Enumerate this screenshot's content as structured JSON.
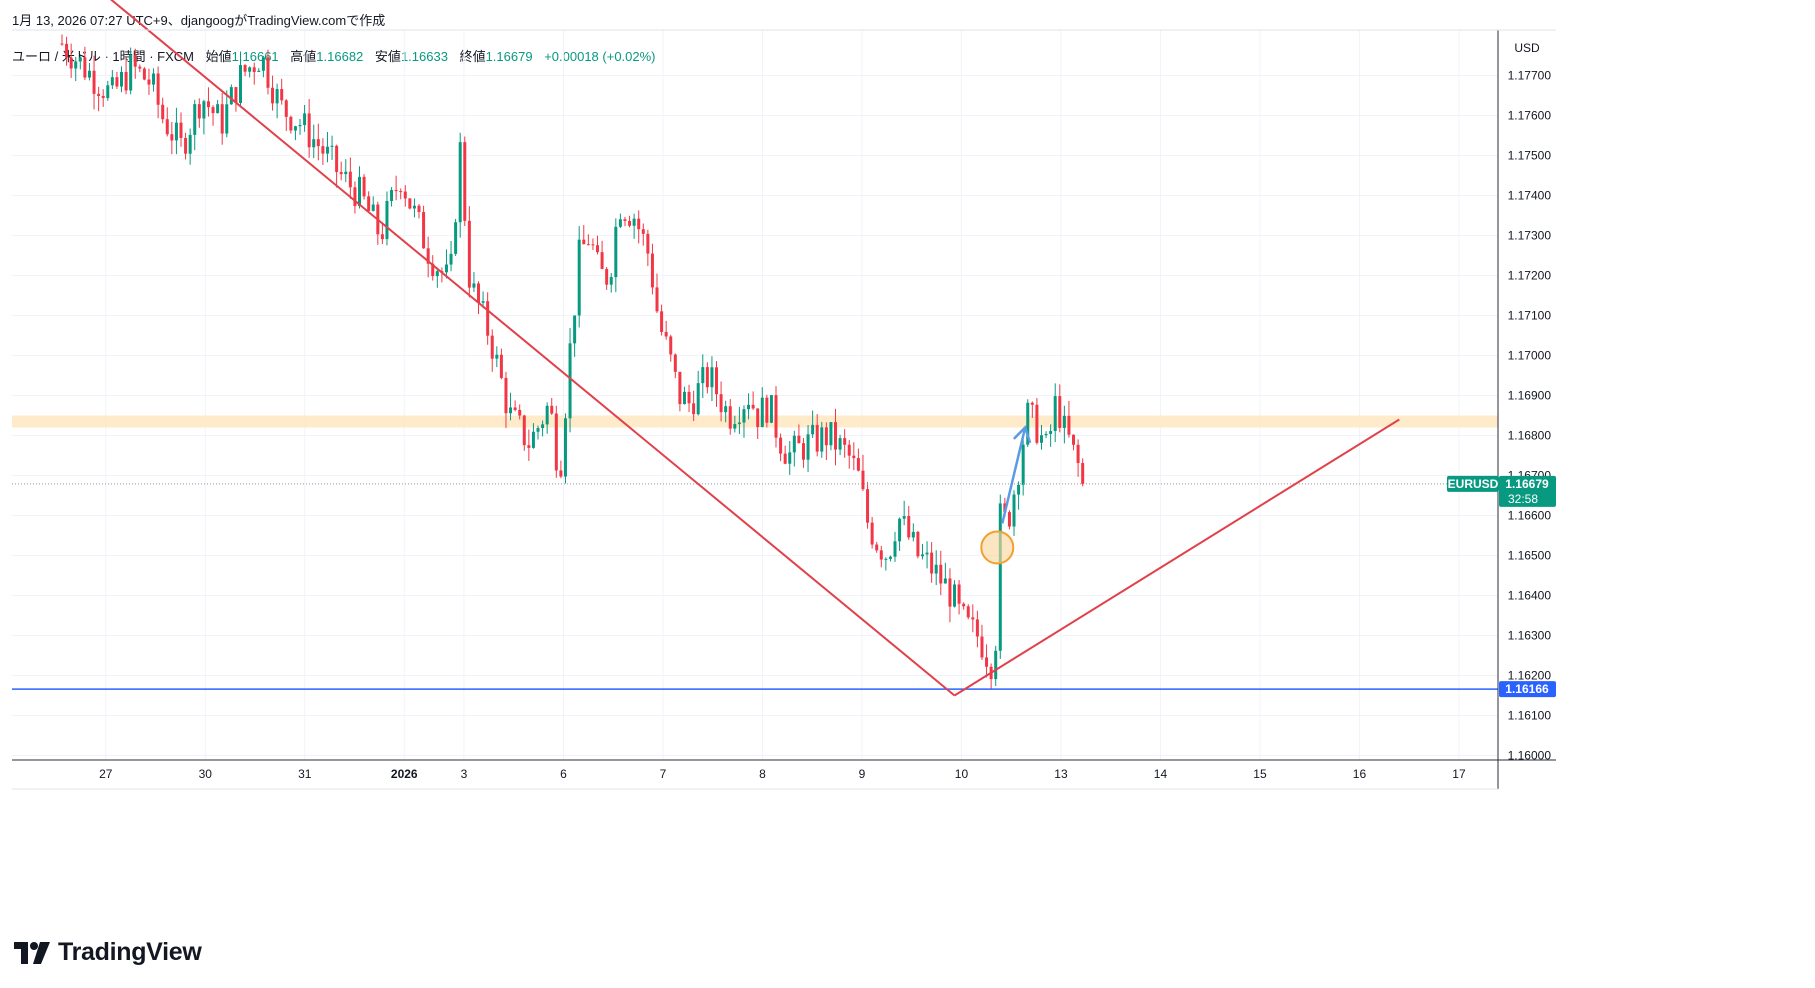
{
  "caption": "1月 13, 2026 07:27 UTC+9、djangoogがTradingView.comで作成",
  "legend": {
    "symbol": "ユーロ / 米ドル · 1時間 · FXCM",
    "open_label": "始値",
    "open": "1.16661",
    "high_label": "高値",
    "high": "1.16682",
    "low_label": "安値",
    "low": "1.16633",
    "close_label": "終値",
    "close": "1.16679",
    "change": "+0.00018 (+0.02%)"
  },
  "brand": "TradingView",
  "price_tag": {
    "symbol": "EURUSD",
    "price": "1.16679",
    "countdown": "32:58"
  },
  "level_tag": "1.16166",
  "colors": {
    "up": "#089981",
    "down": "#f23645",
    "level_line": "#2962ff",
    "trend_line": "#e0414a",
    "zone": "#ffe8bf",
    "arrow": "#5b9be3",
    "circle": "#f0a030"
  },
  "chart_data": {
    "type": "candlestick",
    "currency": "USD",
    "ylim": [
      1.16,
      1.178
    ],
    "yticks": [
      "1.16000",
      "1.16100",
      "1.16200",
      "1.16300",
      "1.16400",
      "1.16500",
      "1.16600",
      "1.16700",
      "1.16800",
      "1.16900",
      "1.17000",
      "1.17100",
      "1.17200",
      "1.17300",
      "1.17400",
      "1.17500",
      "1.17600",
      "1.17700"
    ],
    "xticks": [
      {
        "label": "27",
        "pos": 0.5
      },
      {
        "label": "30",
        "pos": 1.5
      },
      {
        "label": "31",
        "pos": 2.5
      },
      {
        "label": "2026",
        "pos": 3.5,
        "bold": true
      },
      {
        "label": "3",
        "pos": 4.1
      },
      {
        "label": "6",
        "pos": 5.1
      },
      {
        "label": "7",
        "pos": 6.1
      },
      {
        "label": "8",
        "pos": 7.1
      },
      {
        "label": "9",
        "pos": 8.1
      },
      {
        "label": "10",
        "pos": 9.1
      },
      {
        "label": "13",
        "pos": 10.1
      },
      {
        "label": "14",
        "pos": 11.1
      },
      {
        "label": "15",
        "pos": 12.1
      },
      {
        "label": "16",
        "pos": 13.1
      },
      {
        "label": "17",
        "pos": 14.1
      }
    ],
    "last_price": 1.16679,
    "support_level": 1.16166,
    "resistance_zone": [
      1.1682,
      1.1685
    ],
    "trend_lines": [
      {
        "from": [
          0.2,
          1.1795
        ],
        "to": [
          8.97,
          1.1615
        ]
      },
      {
        "from": [
          8.97,
          1.1615
        ],
        "to": [
          13.44,
          1.1684
        ]
      }
    ],
    "arrow": {
      "from": [
        9.45,
        1.1658
      ],
      "to": [
        9.68,
        1.1682
      ]
    },
    "marker_circle": [
      9.4,
      1.1652
    ],
    "path": [
      [
        0.0,
        1.1778
      ],
      [
        0.3,
        1.177
      ],
      [
        0.5,
        1.1765
      ],
      [
        0.7,
        1.1772
      ],
      [
        0.9,
        1.1768
      ],
      [
        1.0,
        1.176
      ],
      [
        1.2,
        1.1752
      ],
      [
        1.4,
        1.1765
      ],
      [
        1.6,
        1.1758
      ],
      [
        1.8,
        1.177
      ],
      [
        2.0,
        1.1775
      ],
      [
        2.2,
        1.1762
      ],
      [
        2.4,
        1.1758
      ],
      [
        2.6,
        1.1752
      ],
      [
        2.8,
        1.1745
      ],
      [
        3.0,
        1.174
      ],
      [
        3.2,
        1.173
      ],
      [
        3.4,
        1.1745
      ],
      [
        3.5,
        1.1738
      ],
      [
        3.7,
        1.1725
      ],
      [
        3.9,
        1.1718
      ],
      [
        4.0,
        1.1752
      ],
      [
        4.1,
        1.1718
      ],
      [
        4.3,
        1.1705
      ],
      [
        4.5,
        1.1685
      ],
      [
        4.7,
        1.1678
      ],
      [
        4.9,
        1.1688
      ],
      [
        5.0,
        1.167
      ],
      [
        5.1,
        1.17
      ],
      [
        5.2,
        1.1725
      ],
      [
        5.3,
        1.173
      ],
      [
        5.4,
        1.172
      ],
      [
        5.5,
        1.172
      ],
      [
        5.6,
        1.1738
      ],
      [
        5.75,
        1.1735
      ],
      [
        5.9,
        1.1725
      ],
      [
        6.0,
        1.1708
      ],
      [
        6.1,
        1.17
      ],
      [
        6.2,
        1.169
      ],
      [
        6.3,
        1.1688
      ],
      [
        6.5,
        1.1695
      ],
      [
        6.7,
        1.1685
      ],
      [
        6.9,
        1.169
      ],
      [
        7.0,
        1.1685
      ],
      [
        7.1,
        1.1688
      ],
      [
        7.2,
        1.168
      ],
      [
        7.3,
        1.1675
      ],
      [
        7.5,
        1.1678
      ],
      [
        7.7,
        1.168
      ],
      [
        7.9,
        1.1675
      ],
      [
        8.0,
        1.167
      ],
      [
        8.1,
        1.1658
      ],
      [
        8.2,
        1.1653
      ],
      [
        8.3,
        1.165
      ],
      [
        8.4,
        1.166
      ],
      [
        8.5,
        1.1655
      ],
      [
        8.6,
        1.165
      ],
      [
        8.7,
        1.1648
      ],
      [
        8.8,
        1.1645
      ],
      [
        8.95,
        1.164
      ],
      [
        9.0,
        1.1636
      ],
      [
        9.1,
        1.1632
      ],
      [
        9.2,
        1.163
      ],
      [
        9.25,
        1.1628
      ],
      [
        9.3,
        1.1625
      ],
      [
        9.38,
        1.1622
      ],
      [
        9.4,
        1.166
      ],
      [
        9.5,
        1.1658
      ],
      [
        9.6,
        1.167
      ],
      [
        9.7,
        1.1685
      ],
      [
        9.8,
        1.1682
      ],
      [
        9.9,
        1.1676
      ],
      [
        10.0,
        1.169
      ],
      [
        10.05,
        1.1682
      ],
      [
        10.1,
        1.168
      ],
      [
        10.2,
        1.1673
      ],
      [
        10.3,
        1.1668
      ],
      [
        10.3,
        1.16679
      ]
    ]
  }
}
